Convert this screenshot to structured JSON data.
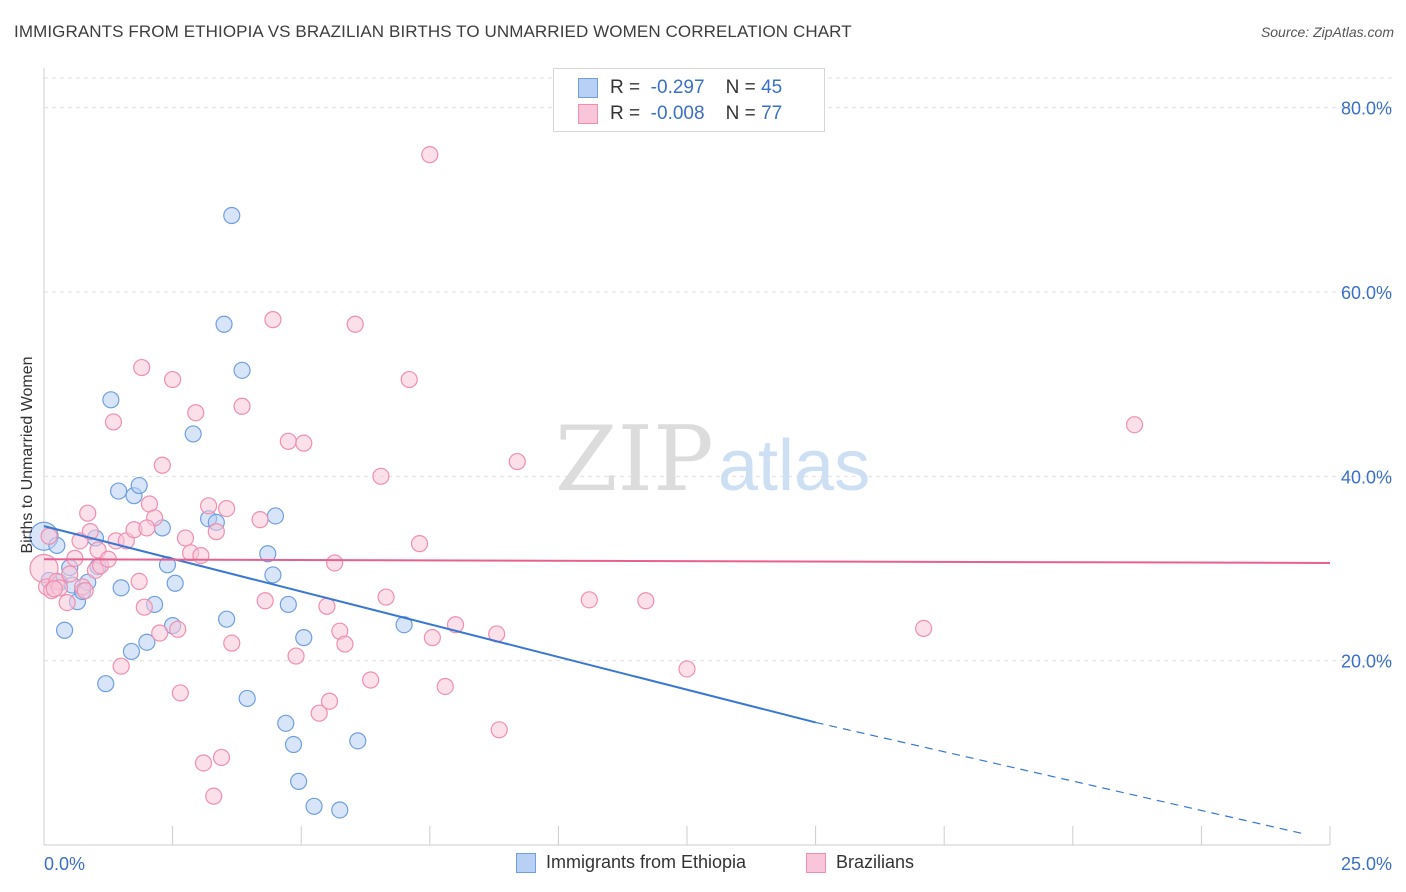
{
  "header": {
    "title": "IMMIGRANTS FROM ETHIOPIA VS BRAZILIAN BIRTHS TO UNMARRIED WOMEN CORRELATION CHART",
    "source": "Source: ZipAtlas.com"
  },
  "watermark": {
    "zip": "ZIP",
    "atlas": "atlas"
  },
  "legend": {
    "r_label": "R =",
    "n_label": "N =",
    "rows": [
      {
        "r": "-0.297",
        "n": "45",
        "color": "#6f9fe0"
      },
      {
        "r": "-0.008",
        "n": "77",
        "color": "#f08fb0"
      }
    ]
  },
  "chart_data": {
    "type": "scatter",
    "title": "IMMIGRANTS FROM ETHIOPIA VS BRAZILIAN BIRTHS TO UNMARRIED WOMEN CORRELATION CHART",
    "xlabel": "",
    "ylabel": "Births to Unmarried Women",
    "xlim": [
      0,
      25
    ],
    "ylim": [
      0,
      83
    ],
    "x_tick_labels": [
      "0.0%",
      "25.0%"
    ],
    "y_ticks": [
      20,
      40,
      60,
      80
    ],
    "y_tick_labels": [
      "20.0%",
      "40.0%",
      "60.0%",
      "80.0%"
    ],
    "grid": true,
    "legend_position": "top-center",
    "series": [
      {
        "name": "Immigrants from Ethiopia",
        "color": "#6f9fe0",
        "fill": "#b8d0f4",
        "r": -0.297,
        "n": 45,
        "trend": {
          "x0": 0,
          "y0": 34.6,
          "x1": 15,
          "y1": 13.3,
          "dashed_to_x": 24.5,
          "dashed_to_y": 1.2
        },
        "points": [
          [
            0.0,
            33.5
          ],
          [
            0.25,
            32.5
          ],
          [
            0.3,
            28.5
          ],
          [
            0.4,
            23.3
          ],
          [
            0.5,
            30.1
          ],
          [
            0.55,
            28.2
          ],
          [
            0.65,
            26.4
          ],
          [
            0.75,
            27.5
          ],
          [
            0.85,
            28.5
          ],
          [
            1.0,
            33.3
          ],
          [
            1.05,
            30.2
          ],
          [
            1.2,
            17.5
          ],
          [
            1.3,
            48.3
          ],
          [
            1.45,
            38.4
          ],
          [
            1.5,
            27.9
          ],
          [
            1.7,
            21.0
          ],
          [
            1.75,
            37.9
          ],
          [
            1.85,
            39.0
          ],
          [
            2.0,
            22.0
          ],
          [
            2.15,
            26.1
          ],
          [
            2.3,
            34.4
          ],
          [
            2.4,
            30.4
          ],
          [
            2.5,
            23.8
          ],
          [
            2.55,
            28.4
          ],
          [
            2.9,
            44.6
          ],
          [
            3.2,
            35.4
          ],
          [
            3.35,
            35.0
          ],
          [
            3.5,
            56.5
          ],
          [
            3.55,
            24.5
          ],
          [
            3.65,
            68.3
          ],
          [
            3.85,
            51.5
          ],
          [
            3.95,
            15.9
          ],
          [
            4.35,
            31.6
          ],
          [
            4.45,
            29.3
          ],
          [
            4.5,
            35.7
          ],
          [
            4.7,
            13.2
          ],
          [
            4.75,
            26.1
          ],
          [
            4.85,
            10.9
          ],
          [
            4.95,
            6.9
          ],
          [
            5.05,
            22.5
          ],
          [
            5.25,
            4.2
          ],
          [
            5.75,
            3.8
          ],
          [
            6.1,
            11.3
          ],
          [
            7.0,
            23.9
          ],
          [
            0.1,
            28.7
          ]
        ]
      },
      {
        "name": "Brazilians",
        "color": "#f08fb0",
        "fill": "#f8c6d8",
        "r": -0.008,
        "n": 77,
        "trend": {
          "x0": 0,
          "y0": 31.0,
          "x1": 25,
          "y1": 30.6
        },
        "points": [
          [
            0.0,
            30.0
          ],
          [
            0.05,
            28.0
          ],
          [
            0.1,
            33.5
          ],
          [
            0.15,
            27.6
          ],
          [
            0.25,
            28.6
          ],
          [
            0.3,
            27.9
          ],
          [
            0.45,
            26.3
          ],
          [
            0.5,
            29.4
          ],
          [
            0.6,
            31.1
          ],
          [
            0.7,
            33.0
          ],
          [
            0.75,
            28.0
          ],
          [
            0.8,
            27.6
          ],
          [
            0.85,
            36.0
          ],
          [
            0.9,
            34.0
          ],
          [
            1.0,
            29.8
          ],
          [
            1.05,
            32.0
          ],
          [
            1.1,
            30.3
          ],
          [
            1.25,
            31.0
          ],
          [
            1.35,
            45.9
          ],
          [
            1.4,
            33.0
          ],
          [
            1.5,
            19.4
          ],
          [
            1.6,
            33.0
          ],
          [
            1.75,
            34.2
          ],
          [
            1.85,
            28.6
          ],
          [
            1.9,
            51.8
          ],
          [
            1.95,
            25.8
          ],
          [
            2.05,
            37.0
          ],
          [
            2.15,
            35.5
          ],
          [
            2.25,
            23.0
          ],
          [
            2.3,
            41.2
          ],
          [
            2.5,
            50.5
          ],
          [
            2.6,
            23.4
          ],
          [
            2.65,
            16.5
          ],
          [
            2.75,
            33.3
          ],
          [
            2.85,
            31.7
          ],
          [
            2.95,
            46.9
          ],
          [
            3.05,
            31.4
          ],
          [
            3.1,
            8.9
          ],
          [
            3.2,
            36.8
          ],
          [
            3.3,
            5.3
          ],
          [
            3.35,
            34.0
          ],
          [
            3.45,
            9.5
          ],
          [
            3.55,
            36.5
          ],
          [
            3.65,
            21.9
          ],
          [
            3.85,
            47.6
          ],
          [
            4.2,
            35.3
          ],
          [
            4.3,
            26.5
          ],
          [
            4.45,
            57.0
          ],
          [
            4.75,
            43.8
          ],
          [
            4.9,
            20.5
          ],
          [
            5.05,
            43.6
          ],
          [
            5.35,
            14.3
          ],
          [
            5.5,
            25.9
          ],
          [
            5.55,
            15.6
          ],
          [
            5.65,
            30.6
          ],
          [
            5.75,
            23.2
          ],
          [
            5.85,
            21.8
          ],
          [
            6.05,
            56.5
          ],
          [
            6.35,
            17.9
          ],
          [
            6.55,
            40.0
          ],
          [
            6.65,
            26.9
          ],
          [
            7.1,
            50.5
          ],
          [
            7.3,
            32.7
          ],
          [
            7.5,
            74.9
          ],
          [
            7.55,
            22.5
          ],
          [
            7.8,
            17.2
          ],
          [
            8.0,
            23.9
          ],
          [
            8.8,
            22.9
          ],
          [
            8.85,
            12.5
          ],
          [
            9.2,
            41.6
          ],
          [
            10.6,
            26.6
          ],
          [
            11.7,
            26.5
          ],
          [
            12.5,
            19.1
          ],
          [
            17.1,
            23.5
          ],
          [
            21.2,
            45.6
          ],
          [
            0.2,
            27.8
          ],
          [
            2.0,
            34.4
          ]
        ]
      }
    ]
  },
  "bottom_legend": [
    {
      "label": "Immigrants from Ethiopia"
    },
    {
      "label": "Brazilians"
    }
  ]
}
